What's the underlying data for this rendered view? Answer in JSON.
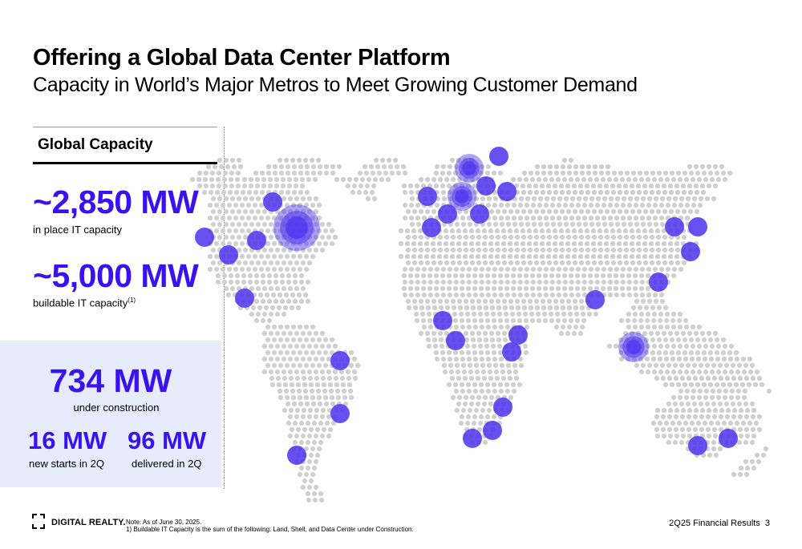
{
  "title": "Offering a Global Data Center Platform",
  "subtitle": "Capacity in World’s Major Metros to Meet Growing Customer Demand",
  "sidebar": {
    "heading": "Global Capacity",
    "in_place": {
      "value": "~2,850 MW",
      "label": "in place IT capacity"
    },
    "buildable": {
      "value": "~5,000 MW",
      "label": "buildable IT capacity",
      "footnote_mark": "(1)"
    }
  },
  "construction_panel": {
    "value": "734 MW",
    "label": "under construction",
    "new_starts": {
      "value": "16 MW",
      "label": "new starts in 2Q"
    },
    "delivered": {
      "value": "96 MW",
      "label": "delivered in 2Q"
    }
  },
  "footer": {
    "logo_text": "DIGITAL REALTY.",
    "note_line1": "Note: As of June 30, 2025.",
    "note_line2": "1) Buildable IT Capacity is the sum of the following: Land, Shell, and Data Center under Construction.",
    "report": "2Q25 Financial Results",
    "page": "3"
  },
  "colors": {
    "accent": "#3a12f0",
    "marker": "#4d33ef",
    "dot": "#cfcfcf",
    "panel": "#e6ecfb"
  }
}
